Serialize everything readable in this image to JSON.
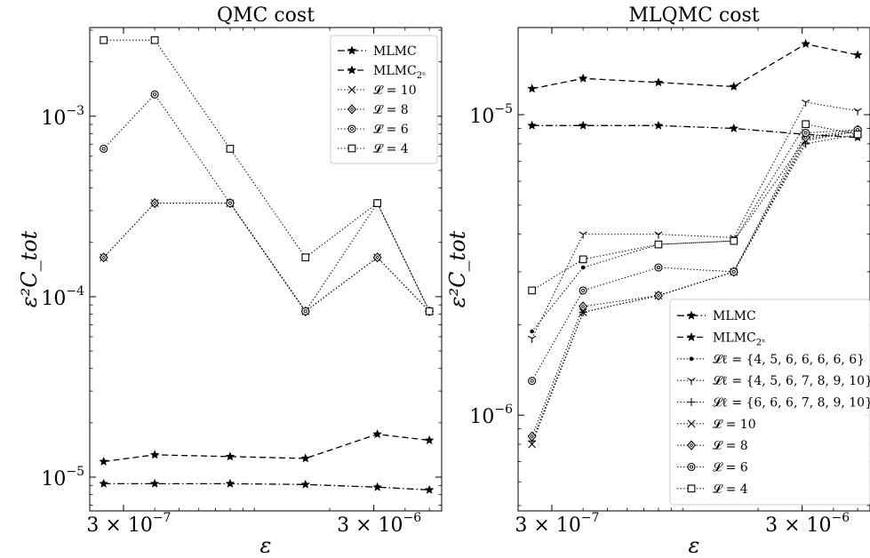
{
  "chart_data": [
    {
      "type": "line",
      "title": "QMC cost",
      "xlabel": "ε",
      "ylabel": "ε²C_tot",
      "xscale": "log",
      "yscale": "log",
      "xlim": [
        2.2e-07,
        5.6e-06
      ],
      "ylim": [
        6.5e-06,
        0.0031
      ],
      "xticks": [
        {
          "value": 3e-07,
          "mant": "3 × 10",
          "exp": "−7"
        },
        {
          "value": 3e-06,
          "mant": "3 × 10",
          "exp": "−6"
        }
      ],
      "yticks": [
        {
          "value": 1e-05,
          "base": "10",
          "exp": "−5"
        },
        {
          "value": 0.0001,
          "base": "10",
          "exp": "−4"
        },
        {
          "value": 0.001,
          "base": "10",
          "exp": "−3"
        }
      ],
      "legend_position": "top-right",
      "x": [
        2.5e-07,
        4e-07,
        8e-07,
        1.6e-06,
        3.1e-06,
        5e-06
      ],
      "series": [
        {
          "name": "MLMC",
          "style": "dashdot",
          "marker": "star",
          "values": [
            9.2e-06,
            9.2e-06,
            9.2e-06,
            9.1e-06,
            8.8e-06,
            8.5e-06
          ]
        },
        {
          "name": "MLMC",
          "sub": "2ⁿ",
          "style": "dashed",
          "marker": "star",
          "values": [
            1.22e-05,
            1.33e-05,
            1.3e-05,
            1.27e-05,
            1.73e-05,
            1.6e-05
          ]
        },
        {
          "name": "𝓛 = 10",
          "style": "dotted",
          "marker": "x",
          "values": [
            0.000165,
            0.00033,
            0.00033,
            8.3e-05,
            0.000165,
            8.3e-05
          ]
        },
        {
          "name": "𝓛 = 8",
          "style": "dotted",
          "marker": "diamond",
          "values": [
            0.000165,
            0.00033,
            0.00033,
            8.3e-05,
            0.000165,
            8.3e-05
          ]
        },
        {
          "name": "𝓛 = 6",
          "style": "dotted",
          "marker": "circle",
          "values": [
            0.00066,
            0.00132,
            0.00033,
            8.3e-05,
            0.00033,
            8.3e-05
          ]
        },
        {
          "name": "𝓛 = 4",
          "style": "dotted",
          "marker": "square",
          "values": [
            0.00264,
            0.00264,
            0.00066,
            0.000165,
            0.00033,
            8.3e-05
          ]
        }
      ]
    },
    {
      "type": "line",
      "title": "MLQMC cost",
      "xlabel": "ε",
      "ylabel": "ε²C_tot",
      "xscale": "log",
      "yscale": "log",
      "xlim": [
        2.2e-07,
        5.6e-06
      ],
      "ylim": [
        4.8e-07,
        1.95e-05
      ],
      "xticks": [
        {
          "value": 3e-07,
          "mant": "3 × 10",
          "exp": "−7"
        },
        {
          "value": 3e-06,
          "mant": "3 × 10",
          "exp": "−6"
        }
      ],
      "yticks": [
        {
          "value": 1e-06,
          "base": "10",
          "exp": "−6"
        },
        {
          "value": 1e-05,
          "base": "10",
          "exp": "−5"
        }
      ],
      "legend_position": "lower-right",
      "x": [
        2.5e-07,
        4e-07,
        8e-07,
        1.6e-06,
        3.1e-06,
        5e-06
      ],
      "series": [
        {
          "name": "MLMC",
          "style": "dashdot",
          "marker": "star",
          "values": [
            9.2e-06,
            9.2e-06,
            9.2e-06,
            9e-06,
            8.6e-06,
            8.4e-06
          ]
        },
        {
          "name": "MLMC",
          "sub": "2ⁿ",
          "style": "dashed",
          "marker": "star",
          "values": [
            1.22e-05,
            1.32e-05,
            1.28e-05,
            1.24e-05,
            1.72e-05,
            1.58e-05
          ]
        },
        {
          "name": "𝓛ℓ = {4, 5, 6, 6, 6, 6, 6}",
          "style": "dotted",
          "marker": "dot",
          "values": [
            1.9e-06,
            3.1e-06,
            3.7e-06,
            3.8e-06,
            8.3e-06,
            8.8e-06
          ]
        },
        {
          "name": "𝓛ℓ = {4, 5, 6, 7, 8, 9, 10}",
          "style": "dotted",
          "marker": "tri_down",
          "values": [
            1.8e-06,
            4e-06,
            4e-06,
            3.9e-06,
            1.1e-05,
            1.03e-05
          ]
        },
        {
          "name": "𝓛ℓ = {6, 6, 6, 7, 8, 9, 10}",
          "style": "dotted",
          "marker": "plus",
          "values": [
            8.2e-07,
            2.2e-06,
            2.5e-06,
            3e-06,
            8e-06,
            8.6e-06
          ]
        },
        {
          "name": "𝓛 = 10",
          "style": "dotted",
          "marker": "x",
          "values": [
            8e-07,
            2.2e-06,
            2.5e-06,
            3e-06,
            8.2e-06,
            8.8e-06
          ]
        },
        {
          "name": "𝓛 = 8",
          "style": "dotted",
          "marker": "diamond",
          "values": [
            8.5e-07,
            2.3e-06,
            2.5e-06,
            3e-06,
            8.4e-06,
            8.9e-06
          ]
        },
        {
          "name": "𝓛 = 6",
          "style": "dotted",
          "marker": "circle",
          "values": [
            1.3e-06,
            2.6e-06,
            3.1e-06,
            3e-06,
            8.7e-06,
            8.9e-06
          ]
        },
        {
          "name": "𝓛 = 4",
          "style": "dotted",
          "marker": "square",
          "values": [
            2.6e-06,
            3.3e-06,
            3.7e-06,
            3.8e-06,
            9.3e-06,
            8.6e-06
          ]
        }
      ]
    }
  ]
}
